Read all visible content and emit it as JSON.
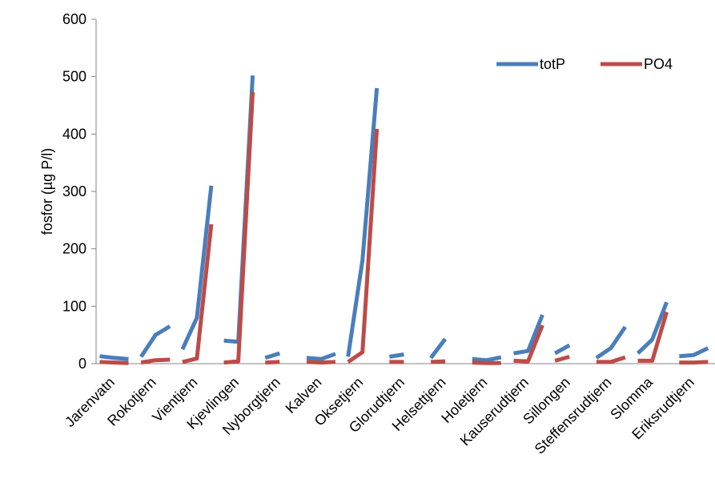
{
  "chart_data": {
    "type": "line",
    "xlabel": "",
    "ylabel": "fosfor (µg P/l)",
    "ylim": [
      0,
      600
    ],
    "yticks": [
      0,
      100,
      200,
      300,
      400,
      500,
      600
    ],
    "grid": false,
    "legend_position": "top-right",
    "category_labels": [
      "Jarenvatn",
      "Rokotjern",
      "Vientjern",
      "Kjevlingen",
      "Nyborgtjern",
      "Kalven",
      "Oksetjern",
      "Glorudtjern",
      "Helsettjern",
      "Holetjern",
      "Kauserudtjern",
      "Sillongen",
      "Steffensrudtjern",
      "Slomma",
      "Eriksrudtjern"
    ],
    "series": [
      {
        "name": "totP",
        "color": "#4a7ebb",
        "segments": [
          [
            13,
            10,
            8
          ],
          [
            12,
            50,
            65
          ],
          [
            25,
            80,
            310
          ],
          [
            40,
            38,
            502
          ],
          [
            10,
            18
          ],
          [
            10,
            8,
            17
          ],
          [
            12,
            180,
            480
          ],
          [
            12,
            16
          ],
          [
            10,
            43
          ],
          [
            8,
            6,
            11
          ],
          [
            18,
            22,
            85
          ],
          [
            18,
            32
          ],
          [
            10,
            27,
            64
          ],
          [
            18,
            42,
            107
          ],
          [
            13,
            15,
            27
          ]
        ]
      },
      {
        "name": "PO4",
        "color": "#be4b48",
        "segments": [
          [
            3,
            2,
            1
          ],
          [
            2,
            6,
            7
          ],
          [
            3,
            9,
            243
          ],
          [
            2,
            4,
            473
          ],
          [
            2,
            3
          ],
          [
            3,
            2,
            3
          ],
          [
            3,
            20,
            409
          ],
          [
            3,
            3
          ],
          [
            3,
            4
          ],
          [
            2,
            1,
            1
          ],
          [
            5,
            4,
            67
          ],
          [
            5,
            12
          ],
          [
            3,
            3,
            11
          ],
          [
            5,
            5,
            90
          ],
          [
            2,
            2,
            3
          ]
        ]
      }
    ]
  }
}
